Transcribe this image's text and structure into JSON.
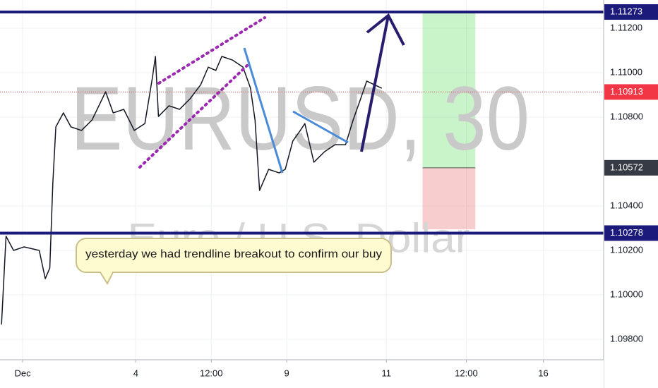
{
  "chart_data": {
    "type": "line",
    "title": "EURUSD, 30",
    "subtitle": "Euro / U.S. Dollar",
    "annotation": "yesterday we had trendline breakout to confirm our buy",
    "color": "#131722",
    "x": [
      1,
      4,
      9,
      16,
      26,
      30,
      33,
      35,
      37,
      42,
      47,
      54,
      61,
      70,
      75,
      82,
      89,
      96,
      101,
      103,
      105,
      112,
      119,
      126,
      133,
      138,
      143,
      147,
      154,
      161,
      166,
      169,
      172,
      178,
      185,
      189,
      194,
      199,
      202,
      208,
      215,
      222,
      229,
      234,
      239,
      243,
      248,
      253
    ],
    "values": [
      1.09867,
      1.10264,
      1.102,
      1.10216,
      1.102,
      1.10073,
      1.10121,
      1.10502,
      1.10756,
      1.10819,
      1.10756,
      1.1074,
      1.10787,
      1.10914,
      1.10819,
      1.10835,
      1.1074,
      1.10771,
      1.10978,
      1.11073,
      1.10803,
      1.10851,
      1.10835,
      1.10883,
      1.10946,
      1.11025,
      1.1101,
      1.11073,
      1.11057,
      1.11025,
      1.1093,
      1.10787,
      1.1047,
      1.10565,
      1.10549,
      1.10565,
      1.10692,
      1.1074,
      1.10771,
      1.10597,
      1.10644,
      1.10676,
      1.10676,
      1.10787,
      1.10883,
      1.10962,
      1.10946,
      1.1093
    ],
    "xlim": [
      0,
      400
    ],
    "xticks": [
      {
        "value": 15,
        "label": "Dec"
      },
      {
        "value": 90,
        "label": "4"
      },
      {
        "value": 140,
        "label": "12:00"
      },
      {
        "value": 190,
        "label": "9"
      },
      {
        "value": 256,
        "label": "11"
      },
      {
        "value": 309,
        "label": "12:00"
      },
      {
        "value": 360,
        "label": "16"
      }
    ],
    "ylim": [
      1.09708,
      1.11327
    ],
    "yticks": [
      {
        "value": 1.112,
        "label": "1.11200"
      },
      {
        "value": 1.11,
        "label": "1.11000"
      },
      {
        "value": 1.108,
        "label": "1.10800"
      },
      {
        "value": 1.104,
        "label": "1.10400"
      },
      {
        "value": 1.102,
        "label": "1.10200"
      },
      {
        "value": 1.1,
        "label": "1.10000"
      },
      {
        "value": 1.098,
        "label": "1.09800"
      }
    ],
    "grid": true,
    "levels": [
      {
        "value": 1.11273,
        "label": "1.11273",
        "color": "#1c1a7a"
      },
      {
        "value": 1.10278,
        "label": "1.10278",
        "color": "#1c1a7a"
      }
    ],
    "last_price": {
      "value": 1.10913,
      "label": "1.10913",
      "color": "#f23645"
    },
    "position": {
      "entry": {
        "value": 1.10572,
        "label": "1.10572"
      },
      "target": 1.11273,
      "stop": 1.10295,
      "x": [
        280,
        315
      ]
    }
  }
}
